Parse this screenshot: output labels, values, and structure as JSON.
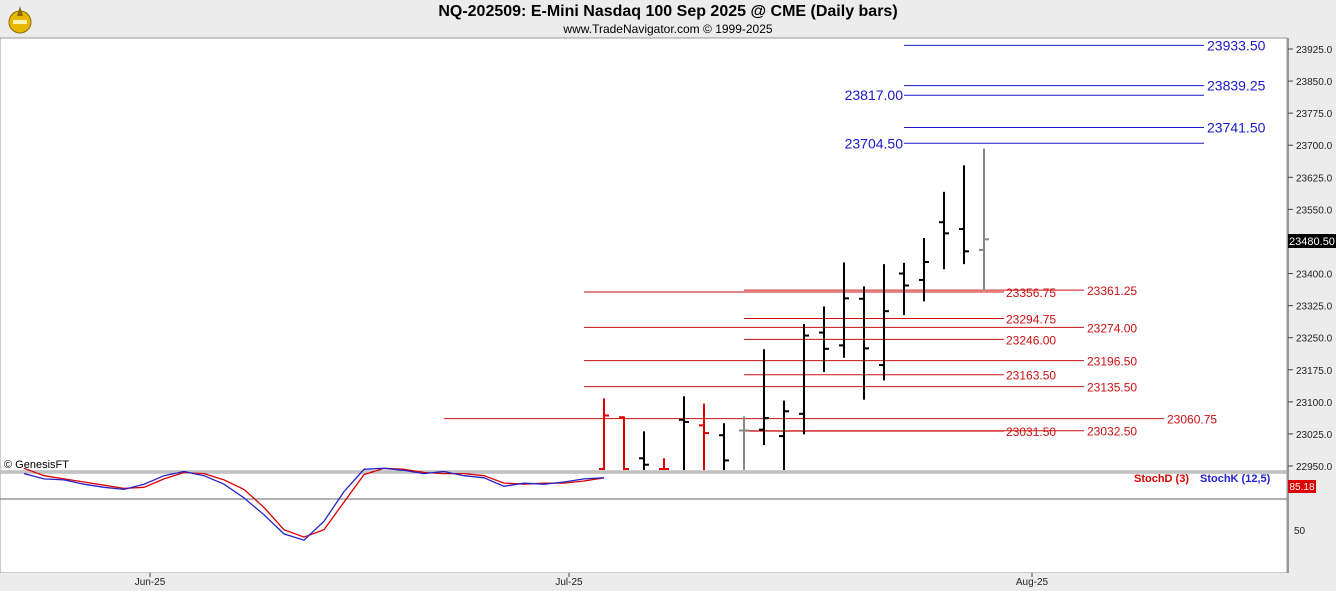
{
  "header": {
    "title": "NQ-202509:  E-Mini Nasdaq 100 Sep 2025 @ CME  (Daily bars)",
    "subtitle": "www.TradeNavigator.com © 1999-2025"
  },
  "watermark": "© GenesisFT",
  "colors": {
    "bar_up": "#000000",
    "bar_down": "#dd0000",
    "bar_current": "#888888",
    "level_blue": "#1919cc",
    "level_red": "#cc1111",
    "stoch_d": "#dd0000",
    "stoch_k": "#2222cc",
    "last_price_bg": "#000000",
    "stoch_badge_bg": "#dd0000"
  },
  "chart_data": {
    "type": "ohlc",
    "price_axis": {
      "ticks": [
        "22950.0",
        "23025.0",
        "23100.0",
        "23175.0",
        "23250.0",
        "23325.0",
        "23400.0",
        "23475.0",
        "23550.0",
        "23625.0",
        "23700.0",
        "23775.0",
        "23850.0",
        "23925.0"
      ],
      "ylim": [
        22910,
        23960
      ]
    },
    "last_price": "23480.50",
    "x_axis_labels": [
      {
        "label": "Jun-25",
        "bar_index": 0
      },
      {
        "label": "Jul-25",
        "bar_index": 1
      },
      {
        "label": "Aug-25",
        "bar_index": 2
      }
    ],
    "bars": [
      {
        "o": 22940,
        "h": 23108,
        "l": 22940,
        "c": 23068,
        "color": "down"
      },
      {
        "o": 23064,
        "h": 23066,
        "l": 22940,
        "c": 22940,
        "color": "down"
      },
      {
        "o": 22968,
        "h": 23031,
        "l": 22940,
        "c": 22953,
        "color": "up"
      },
      {
        "o": 22940,
        "h": 22968,
        "l": 22940,
        "c": 22940,
        "color": "down"
      },
      {
        "o": 23058,
        "h": 23113,
        "l": 22940,
        "c": 23053,
        "color": "up"
      },
      {
        "o": 23045,
        "h": 23096,
        "l": 22940,
        "c": 23027,
        "color": "down"
      },
      {
        "o": 23022,
        "h": 23050,
        "l": 22940,
        "c": 22963,
        "color": "up"
      },
      {
        "o": 23033,
        "h": 23066,
        "l": 22940,
        "c": 23033,
        "color": "current"
      },
      {
        "o": 23035,
        "h": 23223,
        "l": 22999,
        "c": 23062,
        "color": "up"
      },
      {
        "o": 23020,
        "h": 23103,
        "l": 22940,
        "c": 23078,
        "color": "up"
      },
      {
        "o": 23072,
        "h": 23282,
        "l": 23024,
        "c": 23255,
        "color": "up"
      },
      {
        "o": 23262,
        "h": 23323,
        "l": 23170,
        "c": 23224,
        "color": "up"
      },
      {
        "o": 23232,
        "h": 23426,
        "l": 23203,
        "c": 23342,
        "color": "up"
      },
      {
        "o": 23341,
        "h": 23370,
        "l": 23105,
        "c": 23225,
        "color": "up"
      },
      {
        "o": 23186,
        "h": 23422,
        "l": 23150,
        "c": 23312,
        "color": "up"
      },
      {
        "o": 23400,
        "h": 23425,
        "l": 23303,
        "c": 23372,
        "color": "up"
      },
      {
        "o": 23385,
        "h": 23483,
        "l": 23335,
        "c": 23427,
        "color": "up"
      },
      {
        "o": 23520,
        "h": 23591,
        "l": 23410,
        "c": 23494,
        "color": "up"
      },
      {
        "o": 23504,
        "h": 23653,
        "l": 23422,
        "c": 23452,
        "color": "up"
      },
      {
        "o": 23455,
        "h": 23692,
        "l": 23361,
        "c": 23480,
        "color": "current"
      }
    ],
    "levels": [
      {
        "value": "23933.50",
        "color": "blue",
        "side": "right"
      },
      {
        "value": "23839.25",
        "color": "blue",
        "side": "right"
      },
      {
        "value": "23817.00",
        "color": "blue",
        "side": "left"
      },
      {
        "value": "23741.50",
        "color": "blue",
        "side": "right"
      },
      {
        "value": "23704.50",
        "color": "blue",
        "side": "left"
      },
      {
        "value": "23361.25",
        "color": "red",
        "side": "right"
      },
      {
        "value": "23356.75",
        "color": "red",
        "side": "left"
      },
      {
        "value": "23294.75",
        "color": "red",
        "side": "left"
      },
      {
        "value": "23274.00",
        "color": "red",
        "side": "right"
      },
      {
        "value": "23246.00",
        "color": "red",
        "side": "left"
      },
      {
        "value": "23196.50",
        "color": "red",
        "side": "right"
      },
      {
        "value": "23163.50",
        "color": "red",
        "side": "left"
      },
      {
        "value": "23135.50",
        "color": "red",
        "side": "right"
      },
      {
        "value": "23060.75",
        "color": "red",
        "side": "right"
      },
      {
        "value": "23032.50",
        "color": "red",
        "side": "right"
      },
      {
        "value": "23031.50",
        "color": "red",
        "side": "left"
      }
    ],
    "stochastic": {
      "legend_d": "StochD (3)",
      "legend_k": "StochK (12,5)",
      "last_value": "85.18",
      "axis_label": "50",
      "ylim": [
        0,
        100
      ],
      "k": [
        93,
        88,
        87,
        83,
        80,
        78,
        83,
        91,
        95,
        91,
        83,
        70,
        54,
        36,
        30,
        48,
        76,
        97,
        98,
        96,
        93,
        95,
        91,
        89,
        81,
        84,
        83,
        85,
        88,
        89
      ],
      "d": [
        98,
        91,
        88,
        85,
        82,
        79,
        80,
        88,
        94,
        93,
        87,
        78,
        61,
        40,
        33,
        40,
        66,
        92,
        98,
        97,
        94,
        93,
        93,
        91,
        84,
        83,
        84,
        84,
        86,
        89
      ]
    }
  }
}
